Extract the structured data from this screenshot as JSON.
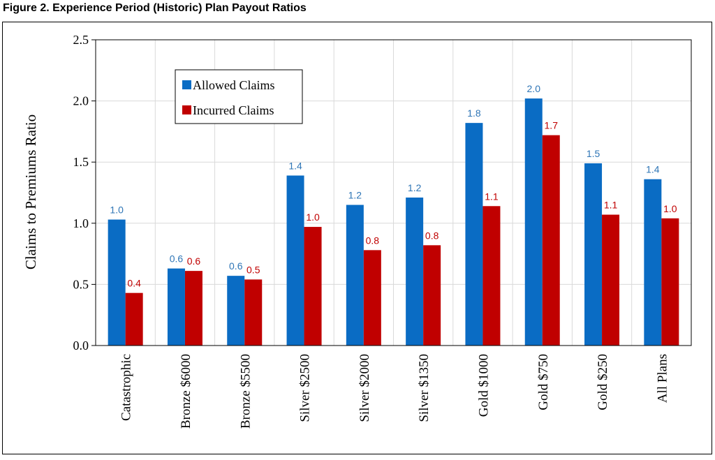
{
  "figure_title": "Figure 2.  Experience Period (Historic) Plan Payout Ratios",
  "colors": {
    "allowed": "#0a6cc4",
    "incurred": "#c00000",
    "allowed_label": "#2e75b6",
    "incurred_label": "#c00000",
    "grid": "#d9d9d9"
  },
  "chart_data": {
    "type": "bar",
    "categories": [
      "Catastrophic",
      "Bronze $6000",
      "Bronze $5500",
      "Silver $2500",
      "Silver $2000",
      "Silver $1350",
      "Gold $1000",
      "Gold $750",
      "Gold $250",
      "All Plans"
    ],
    "series": [
      {
        "name": "Allowed Claims",
        "values": [
          1.03,
          0.63,
          0.57,
          1.39,
          1.15,
          1.21,
          1.82,
          2.02,
          1.49,
          1.36
        ],
        "labels": [
          "1.0",
          "0.6",
          "0.6",
          "1.4",
          "1.2",
          "1.2",
          "1.8",
          "2.0",
          "1.5",
          "1.4"
        ]
      },
      {
        "name": "Incurred Claims",
        "values": [
          0.43,
          0.61,
          0.54,
          0.97,
          0.78,
          0.82,
          1.14,
          1.72,
          1.07,
          1.04
        ],
        "labels": [
          "0.4",
          "0.6",
          "0.5",
          "1.0",
          "0.8",
          "0.8",
          "1.1",
          "1.7",
          "1.1",
          "1.0"
        ]
      }
    ],
    "ylabel": "Claims to Premiums Ratio",
    "xlabel": "",
    "ylim": [
      0,
      2.5
    ],
    "yticks": [
      "0.0",
      "0.5",
      "1.0",
      "1.5",
      "2.0",
      "2.5"
    ],
    "grid": true,
    "legend_position": "top-left"
  }
}
